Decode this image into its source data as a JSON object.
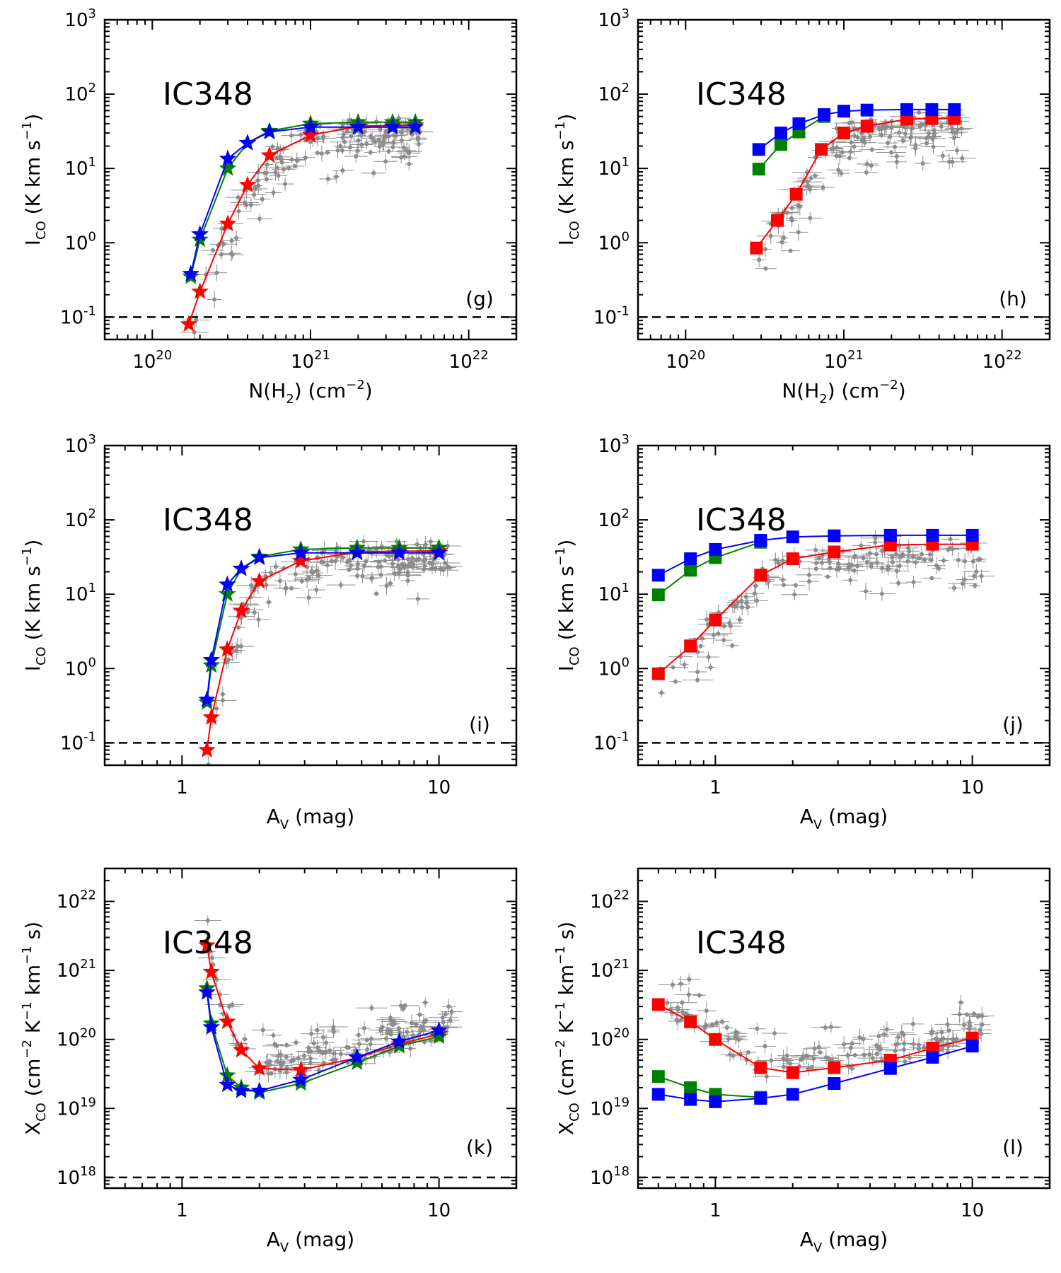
{
  "chart_data": [
    {
      "panel": "g",
      "type": "scatter",
      "marker": "star",
      "name": "IC348",
      "xlabel_base": "N(H",
      "xlabel_sub": "2",
      "xlabel_tail": ") (cm",
      "xlabel_sup": "−2",
      "xlabel_end": ")",
      "ylabel_base": "I",
      "ylabel_sub": "CO",
      "ylabel_mid": " (K km s",
      "ylabel_sup": "−1",
      "ylabel_end": ")",
      "xscale": "log",
      "yscale": "log",
      "xlim": [
        5e+19,
        2e+22
      ],
      "ylim": [
        0.05,
        1000
      ],
      "xticks": [
        {
          "v": 1e+20,
          "b": "10",
          "e": "20"
        },
        {
          "v": 1e+21,
          "b": "10",
          "e": "21"
        },
        {
          "v": 1e+22,
          "b": "10",
          "e": "22"
        }
      ],
      "yticks": [
        {
          "v": 0.1,
          "b": "10",
          "e": "-1"
        },
        {
          "v": 1,
          "b": "10",
          "e": "0"
        },
        {
          "v": 10,
          "b": "10",
          "e": "1"
        },
        {
          "v": 100,
          "b": "10",
          "e": "2"
        },
        {
          "v": 1000,
          "b": "10",
          "e": "3"
        }
      ],
      "dashed_level": 0.1,
      "series": [
        {
          "name": "red",
          "color": "#ff0000",
          "x": [
            1.7e+20,
            2e+20,
            3e+20,
            4e+20,
            5.5e+20,
            1e+21,
            2e+21,
            3.3e+21,
            4.6e+21
          ],
          "y": [
            0.08,
            0.22,
            1.8,
            6,
            15,
            28,
            37,
            38,
            38
          ]
        },
        {
          "name": "green",
          "color": "#008000",
          "x": [
            1.75e+20,
            2e+20,
            3e+20,
            4e+20,
            5.5e+20,
            1e+21,
            2e+21,
            3.3e+21,
            4.6e+21
          ],
          "y": [
            0.35,
            1.1,
            10,
            22,
            32,
            40,
            42,
            42,
            42
          ]
        },
        {
          "name": "blue",
          "color": "#0000ff",
          "x": [
            1.75e+20,
            2e+20,
            3e+20,
            4e+20,
            5.5e+20,
            1e+21,
            2e+21,
            3.3e+21,
            4.6e+21
          ],
          "y": [
            0.38,
            1.3,
            13.5,
            22,
            31,
            36,
            36,
            36,
            36
          ]
        }
      ]
    },
    {
      "panel": "h",
      "type": "scatter",
      "marker": "square",
      "name": "IC348",
      "xlabel_base": "N(H",
      "xlabel_sub": "2",
      "xlabel_tail": ") (cm",
      "xlabel_sup": "−2",
      "xlabel_end": ")",
      "ylabel_base": "I",
      "ylabel_sub": "CO",
      "ylabel_mid": " (K km s",
      "ylabel_sup": "−1",
      "ylabel_end": ")",
      "xscale": "log",
      "yscale": "log",
      "xlim": [
        5e+19,
        2e+22
      ],
      "ylim": [
        0.05,
        1000
      ],
      "xticks": [
        {
          "v": 1e+20,
          "b": "10",
          "e": "20"
        },
        {
          "v": 1e+21,
          "b": "10",
          "e": "21"
        },
        {
          "v": 1e+22,
          "b": "10",
          "e": "22"
        }
      ],
      "yticks": [
        {
          "v": 0.1,
          "b": "10",
          "e": "-1"
        },
        {
          "v": 1,
          "b": "10",
          "e": "0"
        },
        {
          "v": 10,
          "b": "10",
          "e": "1"
        },
        {
          "v": 100,
          "b": "10",
          "e": "2"
        },
        {
          "v": 1000,
          "b": "10",
          "e": "3"
        }
      ],
      "dashed_level": 0.1,
      "series": [
        {
          "name": "red",
          "color": "#ff0000",
          "x": [
            2.8e+20,
            3.8e+20,
            5e+20,
            7.2e+20,
            1e+21,
            1.4e+21,
            2.5e+21,
            3.6e+21,
            5e+21
          ],
          "y": [
            0.85,
            2,
            4.5,
            18,
            30,
            37,
            46,
            47,
            47
          ]
        },
        {
          "name": "green",
          "color": "#008000",
          "x": [
            2.9e+20,
            4e+20,
            5.2e+20,
            7.5e+20
          ],
          "y": [
            9.8,
            21,
            31,
            50
          ]
        },
        {
          "name": "blue",
          "color": "#0000ff",
          "x": [
            2.9e+20,
            4e+20,
            5.2e+20,
            7.5e+20,
            1e+21,
            1.4e+21,
            2.5e+21,
            3.6e+21,
            5e+21
          ],
          "y": [
            18,
            30,
            40,
            53,
            59,
            61,
            62,
            62,
            62
          ]
        }
      ]
    },
    {
      "panel": "i",
      "type": "scatter",
      "marker": "star",
      "name": "IC348",
      "xlabel_base": "A",
      "xlabel_sub": "V",
      "xlabel_tail": " (mag)",
      "ylabel_base": "I",
      "ylabel_sub": "CO",
      "ylabel_mid": " (K km s",
      "ylabel_sup": "−1",
      "ylabel_end": ")",
      "xscale": "log",
      "yscale": "log",
      "xlim": [
        0.5,
        20
      ],
      "ylim": [
        0.05,
        1000
      ],
      "xticks": [
        {
          "v": 1,
          "t": "1"
        },
        {
          "v": 10,
          "t": "10"
        }
      ],
      "yticks": [
        {
          "v": 0.1,
          "b": "10",
          "e": "-1"
        },
        {
          "v": 1,
          "b": "10",
          "e": "0"
        },
        {
          "v": 10,
          "b": "10",
          "e": "1"
        },
        {
          "v": 100,
          "b": "10",
          "e": "2"
        },
        {
          "v": 1000,
          "b": "10",
          "e": "3"
        }
      ],
      "dashed_level": 0.1,
      "series": [
        {
          "name": "red",
          "color": "#ff0000",
          "x": [
            1.25,
            1.3,
            1.5,
            1.7,
            2.0,
            2.9,
            4.8,
            7.0,
            10
          ],
          "y": [
            0.08,
            0.22,
            1.8,
            6,
            15,
            28,
            37,
            38,
            38
          ]
        },
        {
          "name": "green",
          "color": "#008000",
          "x": [
            1.25,
            1.3,
            1.5,
            1.7,
            2.0,
            2.9,
            4.8,
            7.0,
            10
          ],
          "y": [
            0.35,
            1.1,
            10,
            22,
            32,
            40,
            42,
            42,
            42
          ]
        },
        {
          "name": "blue",
          "color": "#0000ff",
          "x": [
            1.25,
            1.3,
            1.5,
            1.7,
            2.0,
            2.9,
            4.8,
            7.0,
            10
          ],
          "y": [
            0.38,
            1.3,
            13.5,
            22,
            31,
            36,
            36,
            36,
            36
          ]
        }
      ]
    },
    {
      "panel": "j",
      "type": "scatter",
      "marker": "square",
      "name": "IC348",
      "xlabel_base": "A",
      "xlabel_sub": "V",
      "xlabel_tail": " (mag)",
      "ylabel_base": "I",
      "ylabel_sub": "CO",
      "ylabel_mid": " (K km s",
      "ylabel_sup": "−1",
      "ylabel_end": ")",
      "xscale": "log",
      "yscale": "log",
      "xlim": [
        0.5,
        20
      ],
      "ylim": [
        0.05,
        1000
      ],
      "xticks": [
        {
          "v": 1,
          "t": "1"
        },
        {
          "v": 10,
          "t": "10"
        }
      ],
      "yticks": [
        {
          "v": 0.1,
          "b": "10",
          "e": "-1"
        },
        {
          "v": 1,
          "b": "10",
          "e": "0"
        },
        {
          "v": 10,
          "b": "10",
          "e": "1"
        },
        {
          "v": 100,
          "b": "10",
          "e": "2"
        },
        {
          "v": 1000,
          "b": "10",
          "e": "3"
        }
      ],
      "dashed_level": 0.1,
      "series": [
        {
          "name": "red",
          "color": "#ff0000",
          "x": [
            0.6,
            0.8,
            1.0,
            1.5,
            2.0,
            2.9,
            4.8,
            7.0,
            10
          ],
          "y": [
            0.85,
            2,
            4.5,
            18,
            30,
            37,
            46,
            47,
            47
          ]
        },
        {
          "name": "green",
          "color": "#008000",
          "x": [
            0.6,
            0.8,
            1.0,
            1.5
          ],
          "y": [
            9.8,
            21,
            31,
            50
          ]
        },
        {
          "name": "blue",
          "color": "#0000ff",
          "x": [
            0.6,
            0.8,
            1.0,
            1.5,
            2.0,
            2.9,
            4.8,
            7.0,
            10
          ],
          "y": [
            18,
            30,
            40,
            53,
            59,
            61,
            62,
            62,
            62
          ]
        }
      ]
    },
    {
      "panel": "k",
      "type": "scatter",
      "marker": "star",
      "name": "IC348",
      "xlabel_base": "A",
      "xlabel_sub": "V",
      "xlabel_tail": " (mag)",
      "ylabel_base": "X",
      "ylabel_sub": "CO",
      "ylabel_mid": " (cm",
      "ylabel_sup": "−2",
      "ylabel_end": " K",
      "ylabel_sup2": "−1",
      "ylabel_end2": " km",
      "ylabel_sup3": "−1",
      "ylabel_end3": " s)",
      "xscale": "log",
      "yscale": "log",
      "xlim": [
        0.5,
        20
      ],
      "ylim": [
        7e+17,
        3e+22
      ],
      "xticks": [
        {
          "v": 1,
          "t": "1"
        },
        {
          "v": 10,
          "t": "10"
        }
      ],
      "yticks": [
        {
          "v": 1e+18,
          "b": "10",
          "e": "18"
        },
        {
          "v": 1e+19,
          "b": "10",
          "e": "19"
        },
        {
          "v": 1e+20,
          "b": "10",
          "e": "20"
        },
        {
          "v": 1e+21,
          "b": "10",
          "e": "21"
        },
        {
          "v": 1e+22,
          "b": "10",
          "e": "22"
        }
      ],
      "dashed_level": 1e+18,
      "series": [
        {
          "name": "red",
          "color": "#ff0000",
          "x": [
            1.25,
            1.3,
            1.5,
            1.7,
            2.0,
            2.9,
            4.8,
            7.0,
            10
          ],
          "y": [
            2.3e+21,
            9.5e+20,
            1.8e+20,
            7e+19,
            3.8e+19,
            3.6e+19,
            5.4e+19,
            8.5e+19,
            1.2e+20
          ]
        },
        {
          "name": "green",
          "color": "#008000",
          "x": [
            1.25,
            1.3,
            1.5,
            1.7,
            2.0,
            2.9,
            4.8,
            7.0,
            10
          ],
          "y": [
            5.5e+20,
            1.7e+20,
            3e+19,
            2e+19,
            1.7e+19,
            2.3e+19,
            4.6e+19,
            8e+19,
            1.1e+20
          ]
        },
        {
          "name": "blue",
          "color": "#0000ff",
          "x": [
            1.25,
            1.3,
            1.5,
            1.7,
            2.0,
            2.9,
            4.8,
            7.0,
            10
          ],
          "y": [
            4.8e+20,
            1.5e+20,
            2.2e+19,
            1.8e+19,
            1.8e+19,
            2.6e+19,
            5.5e+19,
            9.3e+19,
            1.35e+20
          ]
        }
      ]
    },
    {
      "panel": "l",
      "type": "scatter",
      "marker": "square",
      "name": "IC348",
      "xlabel_base": "A",
      "xlabel_sub": "V",
      "xlabel_tail": " (mag)",
      "ylabel_base": "X",
      "ylabel_sub": "CO",
      "ylabel_mid": " (cm",
      "ylabel_sup": "−2",
      "ylabel_end": " K",
      "ylabel_sup2": "−1",
      "ylabel_end2": " km",
      "ylabel_sup3": "−1",
      "ylabel_end3": " s)",
      "xscale": "log",
      "yscale": "log",
      "xlim": [
        0.5,
        20
      ],
      "ylim": [
        7e+17,
        3e+22
      ],
      "xticks": [
        {
          "v": 1,
          "t": "1"
        },
        {
          "v": 10,
          "t": "10"
        }
      ],
      "yticks": [
        {
          "v": 1e+18,
          "b": "10",
          "e": "18"
        },
        {
          "v": 1e+19,
          "b": "10",
          "e": "19"
        },
        {
          "v": 1e+20,
          "b": "10",
          "e": "20"
        },
        {
          "v": 1e+21,
          "b": "10",
          "e": "21"
        },
        {
          "v": 1e+22,
          "b": "10",
          "e": "22"
        }
      ],
      "dashed_level": 1e+18,
      "series": [
        {
          "name": "red",
          "color": "#ff0000",
          "x": [
            0.6,
            0.8,
            1.0,
            1.5,
            2.0,
            2.9,
            4.8,
            7.0,
            10
          ],
          "y": [
            3.2e+20,
            1.8e+20,
            1e+20,
            3.9e+19,
            3.3e+19,
            3.9e+19,
            5e+19,
            7.5e+19,
            1.05e+20
          ]
        },
        {
          "name": "green",
          "color": "#008000",
          "x": [
            0.6,
            0.8,
            1.0,
            1.5
          ],
          "y": [
            2.9e+19,
            2e+19,
            1.6e+19,
            1.45e+19
          ]
        },
        {
          "name": "blue",
          "color": "#0000ff",
          "x": [
            0.6,
            0.8,
            1.0,
            1.5,
            2.0,
            2.9,
            4.8,
            7.0,
            10
          ],
          "y": [
            1.6e+19,
            1.35e+19,
            1.25e+19,
            1.4e+19,
            1.6e+19,
            2.3e+19,
            3.8e+19,
            5.5e+19,
            8e+19
          ]
        }
      ]
    }
  ],
  "colors": {
    "grey_points": "#8c8c8c",
    "axes": "#000000"
  }
}
